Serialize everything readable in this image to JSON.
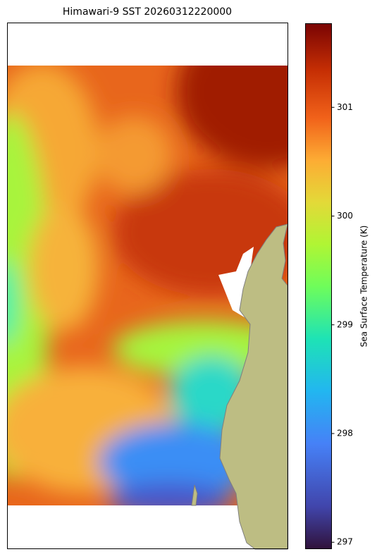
{
  "map": {
    "title": "Himawari-9 SST 20260312220000",
    "colorbar": {
      "label": "Sea Surface Temperature (K)",
      "colormap": "turbo",
      "lim": [
        296.94,
        301.77
      ],
      "ticks": [
        297,
        298,
        299,
        300,
        301
      ]
    }
  }
}
